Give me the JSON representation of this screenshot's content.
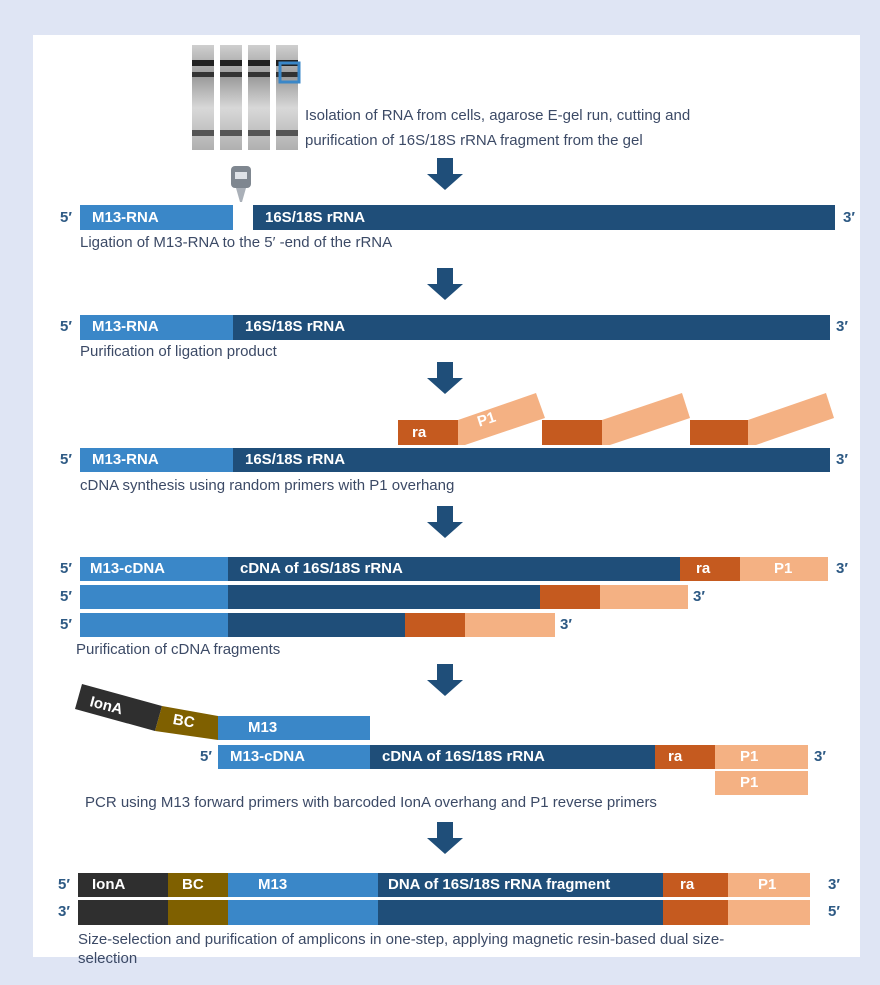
{
  "step1": {
    "caption_lines": [
      "Isolation of RNA from cells, agarose E-gel run, cutting and",
      "purification of 16S/18S rRNA fragment from the gel"
    ]
  },
  "step2": {
    "end5": "5′",
    "end3": "3′",
    "m13": "M13-RNA",
    "rrna": "16S/18S rRNA",
    "caption": "Ligation of M13-RNA to the 5′ -end of the rRNA"
  },
  "step3": {
    "end5": "5′",
    "end3": "3′",
    "m13": "M13-RNA",
    "rrna": "16S/18S rRNA",
    "caption": "Purification of ligation product"
  },
  "step4": {
    "primer_ra": "ra",
    "primer_p1": "P1",
    "end5": "5′",
    "end3": "3′",
    "m13": "M13-RNA",
    "rrna": "16S/18S rRNA",
    "caption": "cDNA synthesis using random primers with P1 overhang"
  },
  "step5": {
    "rows": [
      {
        "end5": "5′",
        "end3": "3′"
      },
      {
        "end5": "5′",
        "end3": "3′"
      },
      {
        "end5": "5′",
        "end3": "3′"
      }
    ],
    "m13": "M13-cDNA",
    "cdna": "cDNA of 16S/18S rRNA",
    "ra": "ra",
    "p1": "P1",
    "caption": "Purification of cDNA fragments"
  },
  "step6": {
    "iona": "IonA",
    "bc": "BC",
    "m13": "M13",
    "end5": "5′",
    "m13cdna": "M13-cDNA",
    "cdna": "cDNA of 16S/18S rRNA",
    "ra": "ra",
    "p1": "P1",
    "end3": "3′",
    "p1_reverse": "P1",
    "caption": "PCR using M13 forward primers with barcoded IonA overhang and P1 reverse primers"
  },
  "step7": {
    "top": {
      "end5": "5′",
      "end3": "3′"
    },
    "bottom": {
      "end3": "3′",
      "end5": "5′"
    },
    "iona": "IonA",
    "bc": "BC",
    "m13": "M13",
    "dna": "DNA of 16S/18S rRNA fragment",
    "ra": "ra",
    "p1": "P1",
    "caption_lines": [
      "Size-selection and purification of amplicons in one-step, applying magnetic resin-based dual size-",
      "selection"
    ]
  }
}
